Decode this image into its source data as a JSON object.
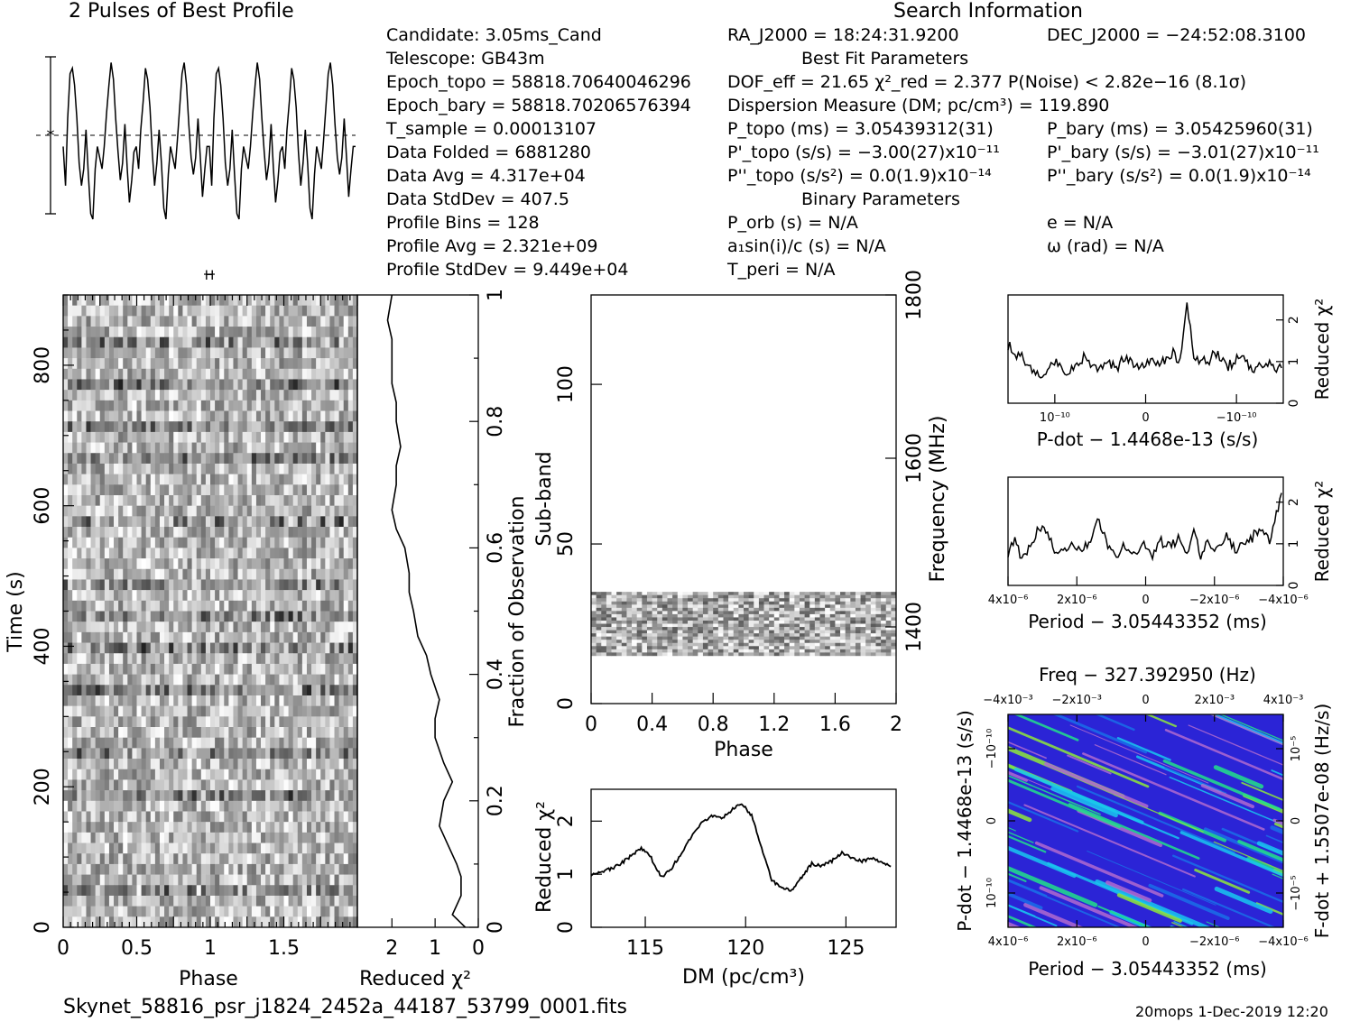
{
  "header": {
    "profile_title": "2 Pulses of Best Profile",
    "search_title": "Search Information"
  },
  "info_left": [
    "Candidate:  3.05ms_Cand",
    "Telescope:  GB43m",
    "Epoch_topo = 58818.70640046296",
    "Epoch_bary = 58818.70206576394",
    "T_sample      =   0.00013107",
    "Data Folded    =   6881280",
    "Data Avg        =   4.317e+04",
    "Data StdDev    =   407.5",
    "Profile Bins    =   128",
    "Profile Avg      =   2.321e+09",
    "Profile StdDev =   9.449e+04"
  ],
  "info_mid": [
    "RA_J2000 = 18:24:31.9200",
    "Best Fit Parameters",
    "DOF_eff = 21.65  χ²_red = 2.377  P(Noise) < 2.82e−16  (8.1σ)",
    "Dispersion Measure (DM; pc/cm³) = 119.890",
    "P_topo (ms) =  3.05439312(31)",
    "P'_topo (s/s) = −3.00(27)x10⁻¹¹",
    "P''_topo (s/s²) = 0.0(1.9)x10⁻¹⁴",
    "Binary Parameters",
    "P_orb (s) = N/A",
    "a₁sin(i)/c (s) = N/A",
    "T_peri = N/A"
  ],
  "info_right": [
    "DEC_J2000 = −24:52:08.3100",
    "P_bary (ms) =  3.05425960(31)",
    "P'_bary (s/s) = −3.01(27)x10⁻¹¹",
    "P''_bary (s/s²) = 0.0(1.9)x10⁻¹⁴",
    "e = N/A",
    "ω (rad) = N/A"
  ],
  "footer": {
    "filename": "Skynet_58816_psr_j1824_2452a_44187_53799_0001.fits",
    "stamp": "20mops   1-Dec-2019 12:20"
  },
  "colors": {
    "ink": "#000000",
    "bg": "#ffffff",
    "cmap": [
      "#2b24d6",
      "#1a6fe8",
      "#19c7ef",
      "#22e08a",
      "#8fe83a",
      "#b06ad0"
    ]
  },
  "chart_data": [
    {
      "id": "profile",
      "type": "line",
      "title": "2 Pulses of Best Profile",
      "x": [
        0,
        0.016,
        0.031,
        0.047,
        0.063,
        0.078,
        0.094,
        0.109,
        0.125,
        0.141,
        0.156,
        0.172,
        0.188,
        0.203,
        0.219,
        0.234,
        0.25,
        0.266,
        0.281,
        0.297,
        0.313,
        0.328,
        0.344,
        0.359,
        0.375,
        0.391,
        0.406,
        0.422,
        0.438,
        0.453,
        0.469,
        0.484,
        0.5,
        0.516,
        0.531,
        0.547,
        0.563,
        0.578,
        0.594,
        0.609,
        0.625,
        0.641,
        0.656,
        0.672,
        0.688,
        0.703,
        0.719,
        0.734,
        0.75,
        0.766,
        0.781,
        0.797,
        0.813,
        0.828,
        0.844,
        0.859,
        0.875,
        0.891,
        0.906,
        0.922,
        0.938,
        0.953,
        0.969,
        0.984,
        1.0
      ],
      "y": [
        -0.2,
        -0.9,
        0.3,
        1.1,
        1.2,
        0.9,
        0.3,
        -0.5,
        -0.9,
        -0.6,
        0.1,
        -0.7,
        -1.4,
        -1.5,
        -0.6,
        -0.2,
        -0.4,
        -0.6,
        -0.2,
        0.4,
        0.9,
        1.3,
        1.0,
        0.3,
        -0.3,
        -0.8,
        -0.5,
        0.2,
        -0.6,
        -1.2,
        -0.8,
        -0.3,
        -0.2,
        -0.6,
        0.1,
        0.6,
        1.2,
        1.0,
        0.5,
        -0.3,
        -0.9,
        -0.5,
        0.1,
        -0.5,
        -1.3,
        -1.5,
        -0.7,
        -0.2,
        -0.4,
        -0.6,
        -0.1,
        0.5,
        1.1,
        1.3,
        0.9,
        0.2,
        -0.4,
        -0.7,
        -0.4,
        0.3,
        -0.4,
        -1.1,
        -0.6,
        -0.2,
        -0.2
      ],
      "error_bar": [
        -1,
        1
      ]
    },
    {
      "id": "time-phase",
      "type": "heatmap",
      "xlabel": "Phase",
      "ylabel": "Time (s)",
      "xlim": [
        0,
        2
      ],
      "ylim": [
        0,
        900
      ],
      "xticks": [
        "0",
        "0.5",
        "1",
        "1.5"
      ],
      "yticks": [
        "0",
        "200",
        "400",
        "600",
        "800"
      ],
      "right_axis_label": "Fraction of Observation",
      "right_ticks": [
        "0",
        "0.2",
        "0.4",
        "0.6",
        "0.8",
        "1"
      ]
    },
    {
      "id": "time-chi2",
      "type": "line",
      "xlabel": "Reduced χ²",
      "xticks": [
        "2",
        "1",
        "0"
      ],
      "xlim": [
        2.8,
        0
      ],
      "fraction": [
        0,
        0.02,
        0.05,
        0.08,
        0.1,
        0.13,
        0.16,
        0.2,
        0.23,
        0.26,
        0.3,
        0.33,
        0.36,
        0.4,
        0.43,
        0.46,
        0.5,
        0.53,
        0.56,
        0.6,
        0.63,
        0.66,
        0.7,
        0.73,
        0.76,
        0.8,
        0.83,
        0.86,
        0.9,
        0.93,
        0.96,
        1.0
      ],
      "chi2": [
        0.3,
        0.6,
        0.4,
        0.4,
        0.5,
        0.7,
        0.9,
        0.8,
        0.6,
        0.8,
        1.0,
        1.0,
        0.9,
        1.1,
        1.2,
        1.4,
        1.5,
        1.6,
        1.6,
        1.7,
        1.9,
        2.0,
        1.9,
        1.9,
        1.8,
        1.9,
        1.9,
        2.0,
        2.0,
        2.0,
        2.1,
        2.0
      ]
    },
    {
      "id": "subband-phase",
      "type": "heatmap",
      "xlabel": "Phase",
      "ylabel": "Sub-band",
      "right_label": "Frequency (MHz)",
      "xticks": [
        "0",
        "0.4",
        "0.8",
        "1.2",
        "1.6",
        "2"
      ],
      "yticks": [
        "0",
        "50",
        "100"
      ],
      "freq_ticks": [
        "1400",
        "1600",
        "1800"
      ],
      "xlim": [
        0,
        2
      ],
      "ylim": [
        0,
        128
      ],
      "active_subbands": [
        15,
        35
      ]
    },
    {
      "id": "dm-chi2",
      "type": "line",
      "xlabel": "DM (pc/cm³)",
      "ylabel": "Reduced χ²",
      "xlim": [
        112.3,
        127.5
      ],
      "ylim": [
        0,
        2.6
      ],
      "xticks": [
        "115",
        "120",
        "125"
      ],
      "yticks": [
        "0",
        "1",
        "2"
      ],
      "x": [
        112.3,
        112.8,
        113.3,
        113.8,
        114.3,
        114.8,
        115.3,
        115.8,
        116.3,
        116.8,
        117.3,
        117.8,
        118.3,
        118.8,
        119.3,
        119.8,
        120.3,
        120.8,
        121.3,
        121.8,
        122.3,
        122.8,
        123.3,
        123.8,
        124.3,
        124.8,
        125.3,
        125.8,
        126.3,
        126.8,
        127.3
      ],
      "y": [
        1.0,
        1.05,
        1.1,
        1.2,
        1.35,
        1.5,
        1.3,
        0.95,
        1.1,
        1.4,
        1.7,
        1.95,
        2.1,
        2.05,
        2.2,
        2.35,
        2.1,
        1.5,
        0.9,
        0.72,
        0.7,
        0.95,
        1.2,
        1.15,
        1.25,
        1.4,
        1.3,
        1.25,
        1.3,
        1.2,
        1.15
      ]
    },
    {
      "id": "pdot-chi2",
      "type": "line",
      "xlabel": "P-dot − 1.4468e-13 (s/s)",
      "ylabel": "Reduced χ²",
      "xticks": [
        "10⁻¹⁰",
        "0",
        "−10⁻¹⁰"
      ],
      "yticks": [
        "0",
        "1",
        "2"
      ],
      "ylim": [
        0,
        2.6
      ],
      "y": [
        1.4,
        1.2,
        1.1,
        0.9,
        0.8,
        0.7,
        0.9,
        1.0,
        0.8,
        0.7,
        1.0,
        1.1,
        0.9,
        0.8,
        1.0,
        0.9,
        0.9,
        1.1,
        1.0,
        0.8,
        0.9,
        1.0,
        0.9,
        1.1,
        1.2,
        1.0,
        2.4,
        1.2,
        1.0,
        1.0,
        1.2,
        1.1,
        0.9,
        1.0,
        1.2,
        0.9,
        0.8,
        0.9,
        1.0,
        0.8,
        0.9
      ]
    },
    {
      "id": "period-chi2",
      "type": "line",
      "xlabel": "Period − 3.05443352 (ms)",
      "ylabel": "Reduced χ²",
      "xticks": [
        "4x10⁻⁶",
        "2x10⁻⁶",
        "0",
        "−2x10⁻⁶",
        "−4x10⁻⁶"
      ],
      "yticks": [
        "0",
        "1",
        "2"
      ],
      "ylim": [
        0,
        2.6
      ],
      "y": [
        0.8,
        1.1,
        0.6,
        0.9,
        1.2,
        1.5,
        1.1,
        0.8,
        0.9,
        1.0,
        0.9,
        0.9,
        1.1,
        1.6,
        1.2,
        0.8,
        0.7,
        1.0,
        0.8,
        0.9,
        1.0,
        0.7,
        1.1,
        0.9,
        1.0,
        1.2,
        0.8,
        1.3,
        0.7,
        1.1,
        0.9,
        1.0,
        1.2,
        0.8,
        1.1,
        1.0,
        1.3,
        1.4,
        1.1,
        1.7,
        2.5
      ]
    },
    {
      "id": "pp-dot",
      "type": "heatmap",
      "title": "Freq − 327.392950 (Hz)",
      "xlabel": "Period − 3.05443352 (ms)",
      "ylabel": "P-dot − 1.4468e-13 (s/s)",
      "right_label": "F-dot + 1.5507e-08 (Hz/s)",
      "top_ticks": [
        "−4x10⁻³",
        "−2x10⁻³",
        "0",
        "2x10⁻³",
        "4x10⁻³"
      ],
      "bottom_ticks": [
        "4x10⁻⁶",
        "2x10⁻⁶",
        "0",
        "−2x10⁻⁶",
        "−4x10⁻⁶"
      ],
      "left_ticks": [
        "−10⁻¹⁰",
        "0",
        "10⁻¹⁰"
      ],
      "right_ticks": [
        "10⁻⁵",
        "0",
        "−10⁻⁵"
      ]
    }
  ]
}
